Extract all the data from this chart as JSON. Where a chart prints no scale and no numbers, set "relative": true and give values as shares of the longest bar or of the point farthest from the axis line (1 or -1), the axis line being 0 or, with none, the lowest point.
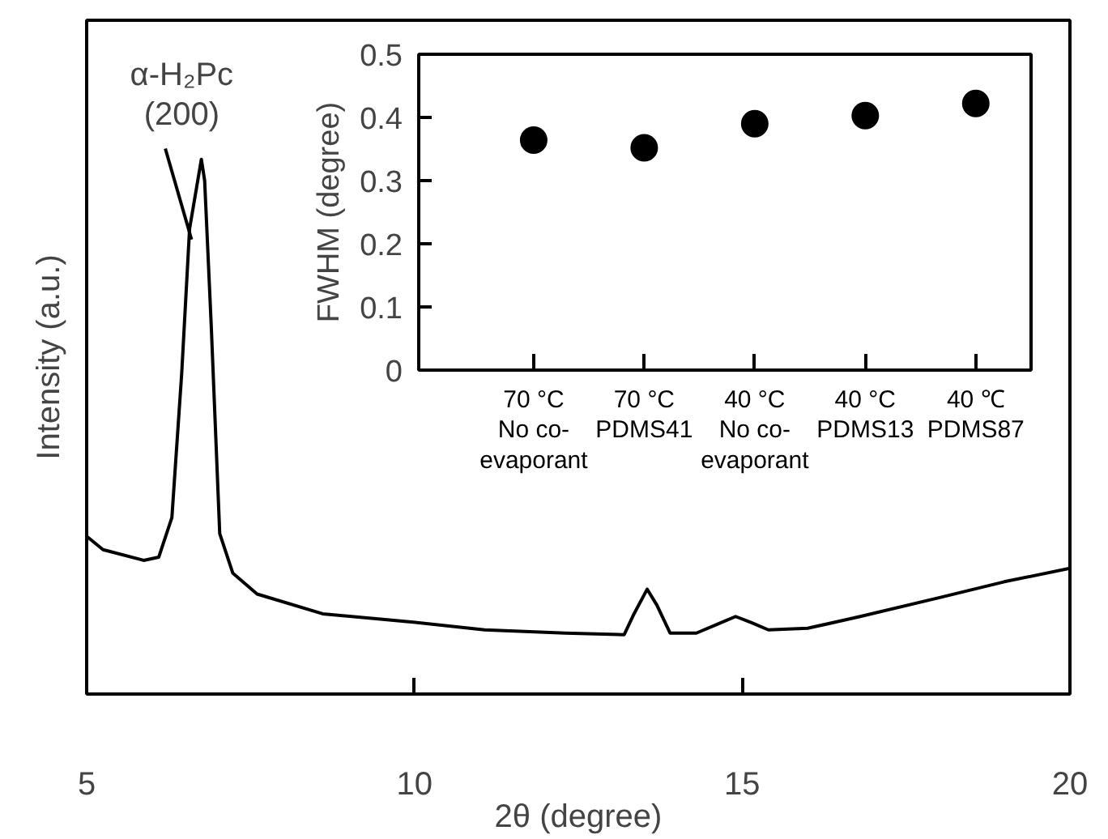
{
  "chart_data": [
    {
      "type": "line",
      "xlabel": "2θ (degree)",
      "ylabel": "Intensity (a.u.)",
      "relative": true,
      "color": "#000000",
      "xlim": [
        5,
        20
      ],
      "xticks": [
        5,
        10,
        15,
        20
      ],
      "x": [
        5.0,
        5.25,
        5.87,
        6.1,
        6.3,
        6.45,
        6.57,
        6.75,
        6.8,
        6.9,
        7.03,
        7.23,
        7.6,
        8.6,
        9.85,
        11.07,
        12.3,
        13.2,
        13.35,
        13.55,
        13.7,
        13.9,
        14.3,
        14.67,
        14.9,
        15.15,
        15.4,
        16.0,
        16.8,
        18.0,
        19.0,
        20.0
      ],
      "values": [
        0.295,
        0.27,
        0.25,
        0.256,
        0.33,
        0.6,
        0.87,
        1.0,
        0.96,
        0.69,
        0.3,
        0.226,
        0.187,
        0.15,
        0.136,
        0.12,
        0.114,
        0.111,
        0.15,
        0.196,
        0.166,
        0.114,
        0.114,
        0.133,
        0.145,
        0.133,
        0.12,
        0.123,
        0.145,
        0.18,
        0.21,
        0.235
      ],
      "annotations": [
        {
          "text": "α-H₂Pc (200)",
          "x": 6.6,
          "y": 0.85
        }
      ]
    },
    {
      "type": "scatter",
      "ylabel": "FWHM (degree)",
      "color": "#000000",
      "marker": "circle",
      "ylim": [
        0,
        0.5
      ],
      "yticks": [
        0,
        0.1,
        0.2,
        0.3,
        0.4,
        0.5
      ],
      "categories": [
        "70 °C\nNo co-evaporant",
        "70 °C\nPDMS41",
        "40 °C\nNo co-evaporant",
        "40 °C\nPDMS13",
        "40 ℃\nPDMS87"
      ],
      "values": [
        0.364,
        0.352,
        0.39,
        0.403,
        0.422
      ]
    }
  ]
}
